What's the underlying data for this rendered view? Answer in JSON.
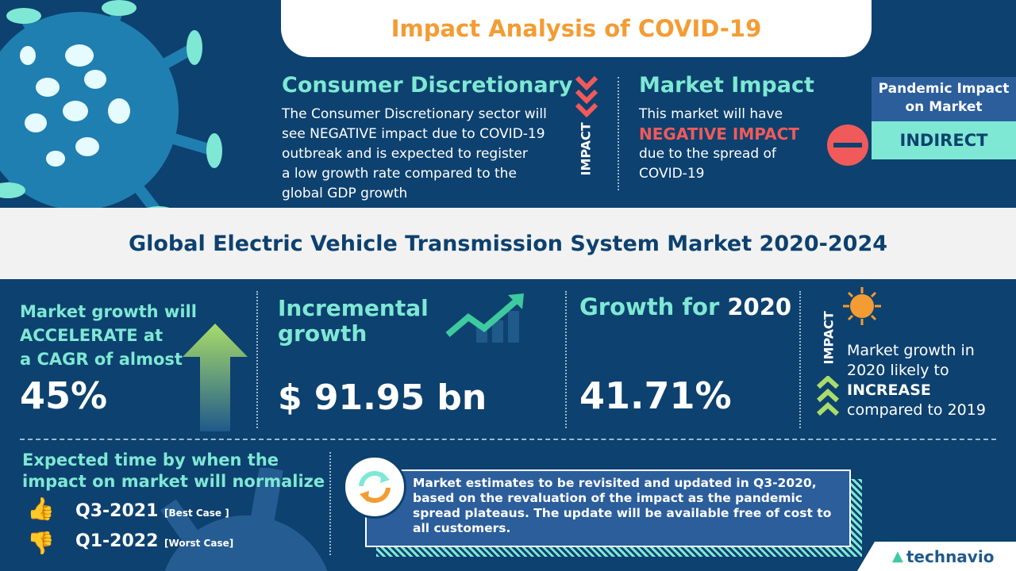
{
  "header": {
    "title": "Impact Analysis of COVID-19"
  },
  "sector": {
    "title": "Consumer Discretionary",
    "lines": [
      "The Consumer Discretionary sector will",
      "see NEGATIVE  impact due to COVID-19",
      "outbreak and is expected to register",
      "a low growth rate compared to the",
      "global GDP growth"
    ],
    "impact_label": "IMPACT"
  },
  "market_impact": {
    "title": "Market Impact",
    "line1": "This market will have",
    "highlight": "NEGATIVE IMPACT",
    "line3": "due to the spread of",
    "line4": "COVID-19"
  },
  "pandemic": {
    "label": "Pandemic Impact on Market",
    "value": "INDIRECT"
  },
  "main_title": "Global Electric Vehicle Transmission System Market 2020-2024",
  "cagr": {
    "lines": [
      "Market growth will",
      "ACCELERATE at",
      "a CAGR of almost"
    ],
    "value": "45%"
  },
  "incremental": {
    "lines": [
      "Incremental",
      "growth"
    ],
    "value": "$ 91.95 bn"
  },
  "growth2020": {
    "label": "Growth for ",
    "year": "2020",
    "value": "41.71%"
  },
  "impact2020": {
    "impact_label": "IMPACT",
    "line1": "Market growth in",
    "line2": "2020 likely to",
    "highlight": "INCREASE",
    "line4": "compared to 2019"
  },
  "normalize": {
    "lines": [
      "Expected time by when the",
      "impact on market will normalize"
    ],
    "best": {
      "value": "Q3-2021",
      "tag": "[Best Case ]"
    },
    "worst": {
      "value": "Q1-2022",
      "tag": "[Worst Case]"
    }
  },
  "note": "Market estimates to be revisited and updated in Q3-2020, based on the revaluation of the impact as the pandemic spread plateaus. The update will be available free of cost to all customers.",
  "brand": "technavio",
  "colors": {
    "navy": "#0d416f",
    "teal": "#7ee8d4",
    "orange": "#f39c33",
    "red": "#f05a5a",
    "blue": "#2b5e9b"
  }
}
